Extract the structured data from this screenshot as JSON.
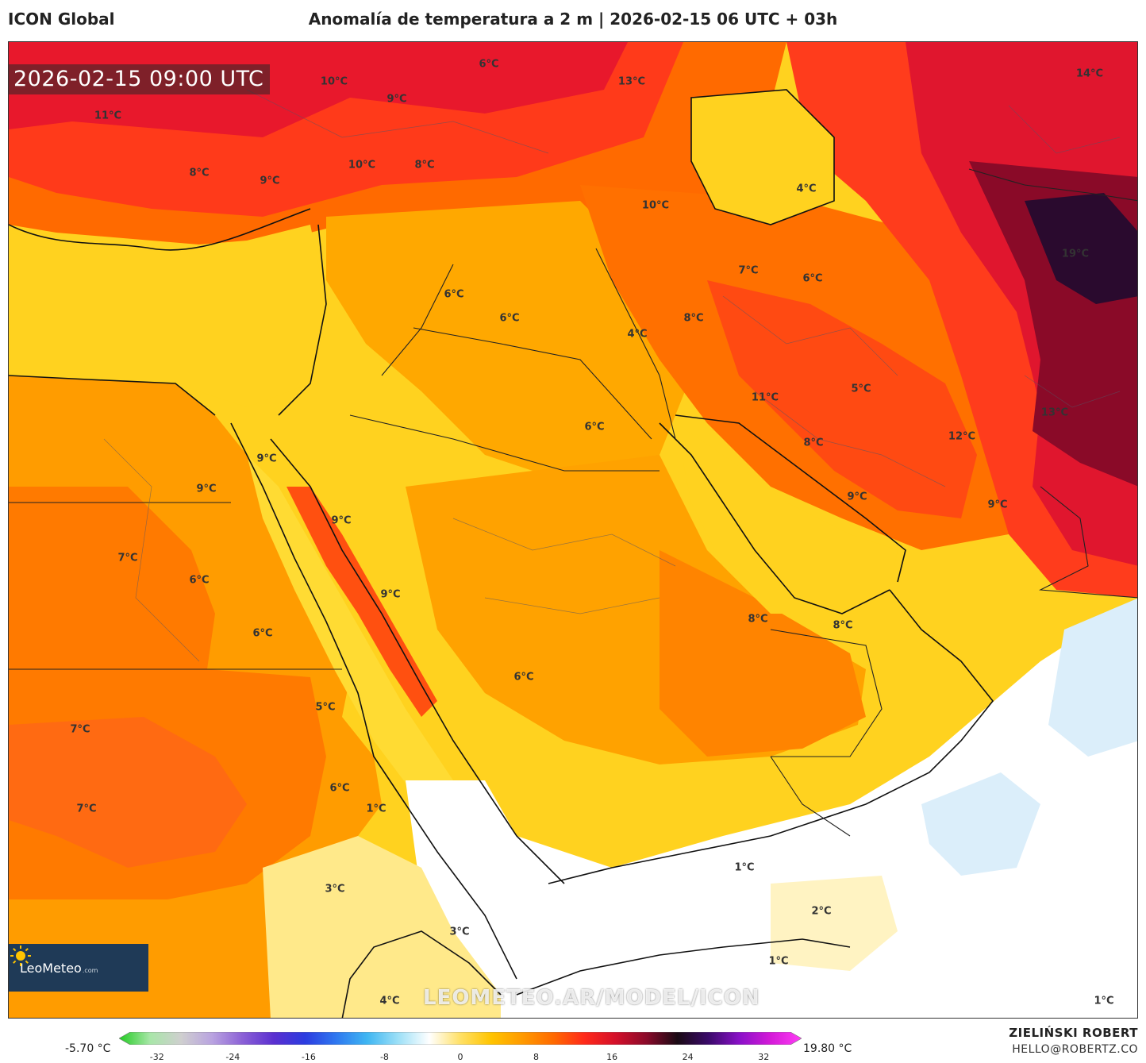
{
  "header": {
    "model": "ICON Global",
    "title": "Anomalía de temperatura a 2 m | 2026-02-15 06 UTC + 03h"
  },
  "map": {
    "timestamp": "2026-02-15 09:00 UTC",
    "watermark": "LEOMETEO.AR/MODEL/ICON",
    "logo": {
      "text": "LeoMeteo",
      "suffix": ".com"
    },
    "labels": [
      {
        "text": "6°C"
      },
      {
        "text": "13°C"
      },
      {
        "text": "14°C"
      },
      {
        "text": "10°C"
      },
      {
        "text": "9°C"
      },
      {
        "text": "11°C"
      },
      {
        "text": "8°C"
      },
      {
        "text": "9°C"
      },
      {
        "text": "10°C"
      },
      {
        "text": "8°C"
      },
      {
        "text": "4°C"
      },
      {
        "text": "10°C"
      },
      {
        "text": "19°C"
      },
      {
        "text": "7°C"
      },
      {
        "text": "6°C"
      },
      {
        "text": "6°C"
      },
      {
        "text": "6°C"
      },
      {
        "text": "4°C"
      },
      {
        "text": "8°C"
      },
      {
        "text": "11°C"
      },
      {
        "text": "5°C"
      },
      {
        "text": "13°C"
      },
      {
        "text": "6°C"
      },
      {
        "text": "8°C"
      },
      {
        "text": "12°C"
      },
      {
        "text": "9°C"
      },
      {
        "text": "9°C"
      },
      {
        "text": "9°C"
      },
      {
        "text": "9°C"
      },
      {
        "text": "9°C"
      },
      {
        "text": "9°C"
      },
      {
        "text": "7°C"
      },
      {
        "text": "6°C"
      },
      {
        "text": "6°C"
      },
      {
        "text": "8°C"
      },
      {
        "text": "8°C"
      },
      {
        "text": "6°C"
      },
      {
        "text": "5°C"
      },
      {
        "text": "7°C"
      },
      {
        "text": "7°C"
      },
      {
        "text": "6°C"
      },
      {
        "text": "1°C"
      },
      {
        "text": "1°C"
      },
      {
        "text": "3°C"
      },
      {
        "text": "3°C"
      },
      {
        "text": "2°C"
      },
      {
        "text": "1°C"
      },
      {
        "text": "4°C"
      },
      {
        "text": "1°C"
      }
    ]
  },
  "colorbar": {
    "min_label": "-5.70 °C",
    "max_label": "19.80 °C",
    "ticks": [
      "-32",
      "-24",
      "-16",
      "-8",
      "0",
      "8",
      "16",
      "24",
      "32"
    ],
    "range": [
      -36,
      36
    ],
    "stops": [
      "#22cc22",
      "#a8e6a8",
      "#cfcfcf",
      "#b9a3e0",
      "#8a5fd6",
      "#5a2fd0",
      "#2b3ce0",
      "#2f78f0",
      "#3fb6f2",
      "#9de0f7",
      "#ffffff",
      "#ffe066",
      "#ffc400",
      "#ff9a00",
      "#ff6a00",
      "#ff2a1a",
      "#d4102a",
      "#8a0a2a",
      "#1a0a14",
      "#3a0a6a",
      "#8a10c8",
      "#d41ad8",
      "#ff3cf5"
    ]
  },
  "footer": {
    "author": "ZIELIŃSKI ROBERT",
    "email": "HELLO@ROBERTZ.CO"
  },
  "colors": {
    "yellow": "#ffd21f",
    "orange": "#ff9c00",
    "dark_orange": "#ff7a00",
    "red_orange": "#ff4a12",
    "red": "#e61a2c",
    "dark_red": "#7a0a24",
    "purple_black": "#2a0a2e",
    "white": "#ffffff",
    "light_blue": "#dbeefa"
  }
}
